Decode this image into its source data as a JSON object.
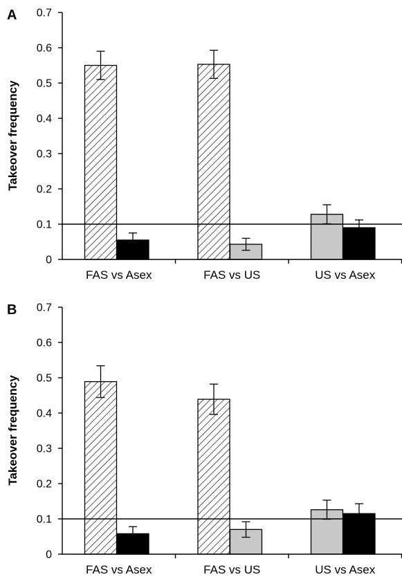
{
  "colors": {
    "fas": "hatched",
    "us": "#c8c8c8",
    "asex": "#000000",
    "axis": "#000000",
    "background": "#ffffff"
  },
  "chart_data": [
    {
      "panel": "A",
      "type": "bar",
      "ylabel": "Takeover frequency",
      "ylim": [
        0,
        0.7
      ],
      "yticks": [
        "0",
        "0.1",
        "0.2",
        "0.3",
        "0.4",
        "0.5",
        "0.6",
        "0.7"
      ],
      "reference_line": 0.1,
      "grid": false,
      "legend": "none",
      "categories": [
        "FAS vs Asex",
        "FAS vs US",
        "US vs Asex"
      ],
      "bars": [
        [
          {
            "kind": "fas",
            "value": 0.55,
            "err": 0.04
          },
          {
            "kind": "asex",
            "value": 0.055,
            "err": 0.02
          }
        ],
        [
          {
            "kind": "fas",
            "value": 0.553,
            "err": 0.04
          },
          {
            "kind": "us",
            "value": 0.043,
            "err": 0.017
          }
        ],
        [
          {
            "kind": "us",
            "value": 0.128,
            "err": 0.027
          },
          {
            "kind": "asex",
            "value": 0.09,
            "err": 0.022
          }
        ]
      ]
    },
    {
      "panel": "B",
      "type": "bar",
      "ylabel": "Takeover frequency",
      "ylim": [
        0,
        0.7
      ],
      "yticks": [
        "0",
        "0.1",
        "0.2",
        "0.3",
        "0.4",
        "0.5",
        "0.6",
        "0.7"
      ],
      "reference_line": 0.1,
      "grid": false,
      "legend": "none",
      "categories": [
        "FAS vs Asex",
        "FAS vs US",
        "US vs Asex"
      ],
      "bars": [
        [
          {
            "kind": "fas",
            "value": 0.489,
            "err": 0.045
          },
          {
            "kind": "asex",
            "value": 0.058,
            "err": 0.02
          }
        ],
        [
          {
            "kind": "fas",
            "value": 0.439,
            "err": 0.043
          },
          {
            "kind": "us",
            "value": 0.07,
            "err": 0.022
          }
        ],
        [
          {
            "kind": "us",
            "value": 0.126,
            "err": 0.027
          },
          {
            "kind": "asex",
            "value": 0.115,
            "err": 0.028
          }
        ]
      ]
    }
  ]
}
